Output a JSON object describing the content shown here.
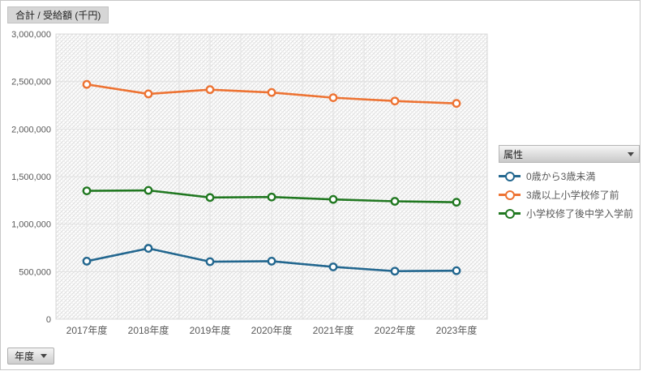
{
  "value_field_button": {
    "label": "合計 / 受給額 (千円)"
  },
  "axis_field_button": {
    "label": "年度"
  },
  "legend": {
    "header": "属性",
    "items": [
      {
        "label": "0歳から3歳未満",
        "color": "#23678F"
      },
      {
        "label": "3歳以上小学校修了前",
        "color": "#ED7333"
      },
      {
        "label": "小学校修了後中学入学前",
        "color": "#217821"
      }
    ]
  },
  "chart_data": {
    "type": "line",
    "title": "合計 / 受給額 (千円)",
    "xlabel": "年度",
    "ylabel": "受給額 (千円)",
    "categories": [
      "2017年度",
      "2018年度",
      "2019年度",
      "2020年度",
      "2021年度",
      "2022年度",
      "2023年度"
    ],
    "series": [
      {
        "name": "0歳から3歳未満",
        "color": "#23678F",
        "values": [
          610000,
          745000,
          605000,
          610000,
          550000,
          505000,
          510000
        ]
      },
      {
        "name": "3歳以上小学校修了前",
        "color": "#ED7333",
        "values": [
          2470000,
          2370000,
          2415000,
          2385000,
          2330000,
          2295000,
          2270000
        ]
      },
      {
        "name": "小学校修了後中学入学前",
        "color": "#217821",
        "values": [
          1350000,
          1355000,
          1280000,
          1285000,
          1260000,
          1240000,
          1230000
        ]
      }
    ],
    "ylim": [
      0,
      3000000
    ],
    "ytick_step": 500000,
    "ytick_labels": [
      "0",
      "500,000",
      "1,000,000",
      "1,500,000",
      "2,000,000",
      "2,500,000",
      "3,000,000"
    ],
    "grid": true,
    "legend_position": "right",
    "legend_field": "属性",
    "category_axis_field": "年度",
    "plot_background": "diagonal-hatch"
  }
}
